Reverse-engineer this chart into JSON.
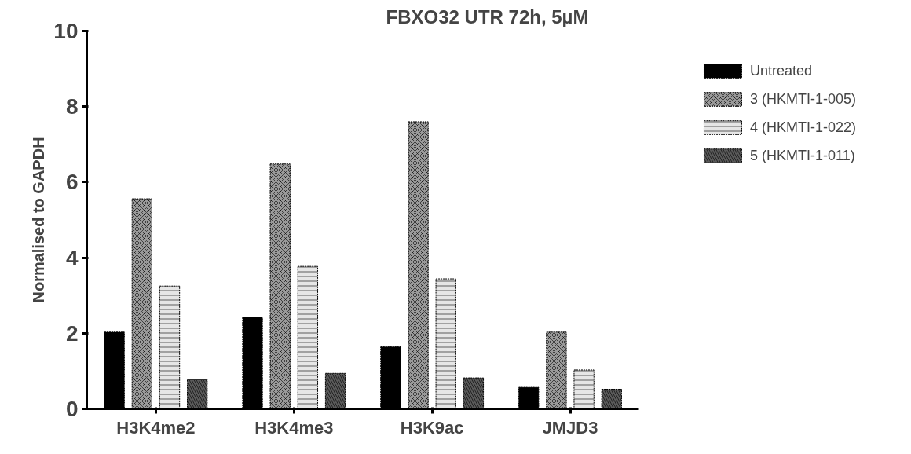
{
  "chart_data": {
    "type": "bar",
    "title": "FBXO32 UTR 72h, 5µM",
    "ylabel": "Normalised to GAPDH",
    "categories": [
      "H3K4me2",
      "H3K4me3",
      "H3K9ac",
      "JMJD3"
    ],
    "series": [
      {
        "name": "Untreated",
        "color": "#000000",
        "values": [
          2.03,
          2.43,
          1.64,
          0.57
        ]
      },
      {
        "name": "3 (HKMTI-1-005)",
        "color": "#9a9a9a",
        "values": [
          5.56,
          6.48,
          7.6,
          2.03
        ]
      },
      {
        "name": "4 (HKMTI-1-022)",
        "color": "#e6e6e6",
        "values": [
          3.25,
          3.77,
          3.44,
          1.03
        ]
      },
      {
        "name": "5 (HKMTI-1-011)",
        "color": "#5a5a5a",
        "values": [
          0.78,
          0.94,
          0.82,
          0.52
        ]
      }
    ],
    "ylim": [
      0,
      10
    ],
    "yticks": [
      0,
      2,
      4,
      6,
      8,
      10
    ],
    "grid": false,
    "legend": "right"
  }
}
